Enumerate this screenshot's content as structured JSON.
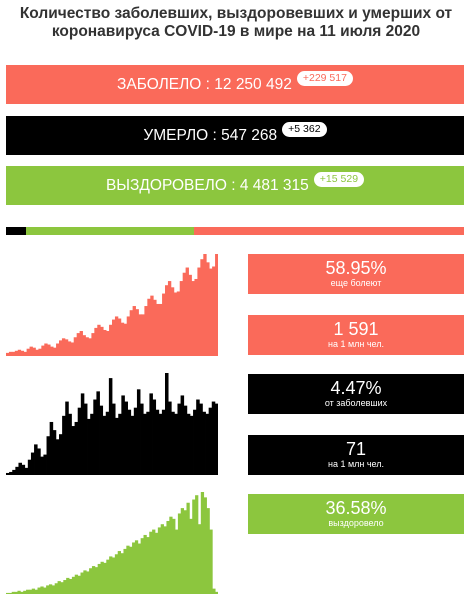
{
  "title": "Количество заболевших, выздоровевших и умерших от коронавируса COVID-19 в мире на 11 июля 2020",
  "colors": {
    "cases": "#fa6a5a",
    "deaths": "#000000",
    "recovered": "#8cc63e",
    "text": "#333333"
  },
  "bars": {
    "cases": {
      "label": "ЗАБОЛЕЛО : 12 250 492",
      "delta": "+229 517"
    },
    "deaths": {
      "label": "УМЕРЛО : 547 268",
      "delta": "+5 362"
    },
    "recovered": {
      "label": "ВЫЗДОРОВЕЛО : 4 481 315",
      "delta": "+15 529"
    }
  },
  "share": {
    "deaths": 0.0447,
    "recovered": 0.3658,
    "active": 0.5895
  },
  "stats": {
    "active_pct": {
      "value": "58.95%",
      "caption": "еще болеют"
    },
    "cases_per_million": {
      "value": "1 591",
      "caption": "на 1 млн чел."
    },
    "death_rate": {
      "value": "4.47%",
      "caption": "от заболевших"
    },
    "deaths_per_million": {
      "value": "71",
      "caption": "на 1 млн чел."
    },
    "recovered_pct": {
      "value": "36.58%",
      "caption": "выздоровело"
    }
  },
  "sparklines": {
    "cases": [
      3,
      4,
      4,
      5,
      6,
      5,
      4,
      7,
      9,
      8,
      6,
      7,
      10,
      12,
      11,
      9,
      8,
      12,
      15,
      17,
      16,
      14,
      13,
      18,
      22,
      24,
      20,
      18,
      17,
      22,
      27,
      30,
      28,
      25,
      24,
      30,
      35,
      38,
      36,
      32,
      31,
      38,
      44,
      48,
      45,
      40,
      40,
      48,
      55,
      58,
      54,
      50,
      50,
      60,
      68,
      72,
      66,
      61,
      62,
      72,
      80,
      85,
      78,
      72,
      74,
      85,
      93,
      98,
      90,
      84,
      86,
      98
    ],
    "deaths": [
      2,
      3,
      5,
      8,
      12,
      10,
      7,
      15,
      22,
      30,
      26,
      18,
      20,
      38,
      52,
      44,
      35,
      40,
      58,
      72,
      60,
      48,
      52,
      66,
      80,
      70,
      55,
      60,
      74,
      82,
      68,
      58,
      62,
      95,
      70,
      56,
      60,
      78,
      72,
      64,
      58,
      66,
      84,
      70,
      60,
      62,
      80,
      74,
      64,
      60,
      64,
      100,
      72,
      62,
      60,
      70,
      78,
      68,
      60,
      58,
      64,
      74,
      70,
      62,
      60,
      66,
      72,
      70
    ],
    "recovered": [
      1,
      1,
      2,
      2,
      3,
      2,
      3,
      4,
      4,
      5,
      4,
      6,
      7,
      6,
      8,
      9,
      8,
      10,
      12,
      11,
      13,
      15,
      14,
      16,
      18,
      17,
      20,
      22,
      21,
      24,
      26,
      25,
      28,
      30,
      29,
      32,
      35,
      34,
      37,
      40,
      38,
      42,
      45,
      44,
      48,
      50,
      47,
      52,
      55,
      53,
      58,
      60,
      57,
      62,
      65,
      63,
      68,
      72,
      70,
      60,
      75,
      80,
      78,
      85,
      70,
      88,
      92,
      65,
      95,
      90,
      80,
      60,
      5,
      2
    ]
  }
}
